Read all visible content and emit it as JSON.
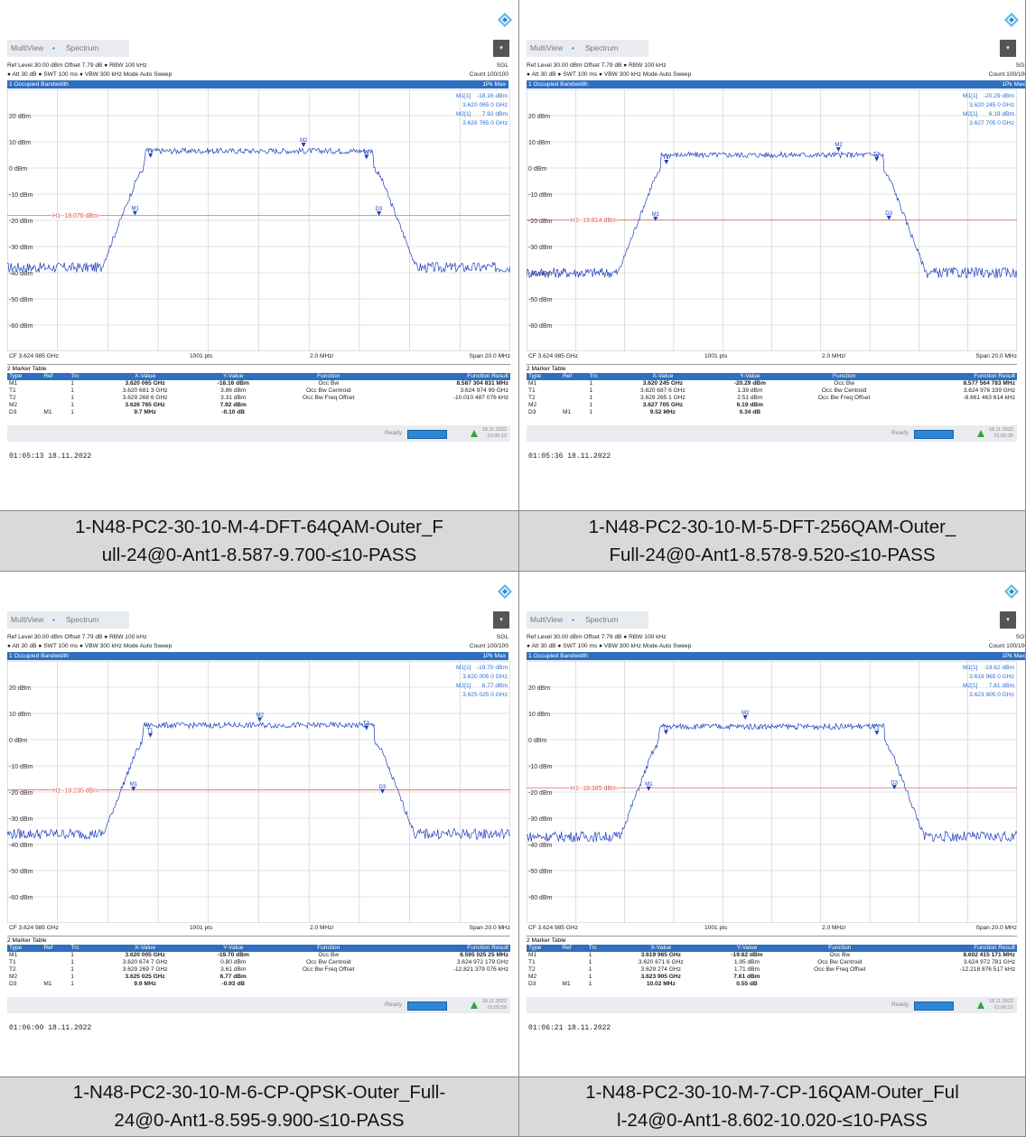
{
  "colors": {
    "accent": "#2f6fbf",
    "trace": "#1e3fbf",
    "display_line": "#e05050",
    "caption_bg": "#d9d9d9"
  },
  "panels": [
    {
      "tab_mv": "MultiView",
      "tab_sp": "Spectrum",
      "setting1": "Ref Level 30.00 dBm   Offset 7.79 dB ● RBW 100 kHz",
      "setting1_r": "SGL",
      "setting2": "● Att 30 dB ● SWT 100 ms ● VBW 300 kHz   Mode Auto Sweep",
      "setting2_r": "Count 100/100",
      "window_title": "1 Occupied Bandwidth",
      "window_trace": "1Pk Max",
      "marker_readout": [
        [
          "M1[1]",
          "-18.16 dBm"
        ],
        [
          "",
          "3.620 065 0 GHz"
        ],
        [
          "M2[1]",
          "7.92 dBm"
        ],
        [
          "",
          "3.626 765 0 GHz"
        ]
      ],
      "h1_label": "H1 -18.076 dBm",
      "y_labels": [
        "20 dBm",
        "10 dBm",
        "0 dBm",
        "-10 dBm",
        "-20 dBm",
        "-30 dBm",
        "-40 dBm",
        "-50 dBm",
        "-60 dBm"
      ],
      "cf": "CF 3.624 985 GHz",
      "pts": "1001 pts",
      "div": "2.0 MHz/",
      "span": "Span 20.0 MHz",
      "table_title": "2 Marker Table",
      "table_headers": [
        "Type",
        "Ref",
        "Trc",
        "X-Value",
        "Y-Value",
        "Function",
        "Function Result"
      ],
      "table_rows": [
        [
          "M1",
          "",
          "1",
          "3.620 065 GHz",
          "-18.16 dBm",
          "Occ Bw",
          "8.587 304 831 MHz"
        ],
        [
          "T1",
          "",
          "1",
          "3.620 681 3 GHz",
          "3.86 dBm",
          "Occ Bw Centroid",
          "3.624 974 99 GHz"
        ],
        [
          "T2",
          "",
          "1",
          "3.629 268 6 GHz",
          "3.31 dBm",
          "Occ Bw Freq Offset",
          "-10.010 487 076 kHz"
        ],
        [
          "M2",
          "",
          "1",
          "3.626 765 GHz",
          "7.92 dBm",
          "",
          ""
        ],
        [
          "D3",
          "M1",
          "1",
          "9.7 MHz",
          "-0.10 dB",
          "",
          ""
        ]
      ],
      "status": "Ready",
      "status_date": "18.11.2022",
      "status_time": "01:05:13",
      "timestamp": "01:05:13  18.11.2022",
      "caption": [
        "1-N48-PC2-30-10-M-4-DFT-64QAM-Outer_F",
        "ull-24@0-Ant1-8.587-9.700-≤10-PASS"
      ],
      "chart_data": {
        "type": "line",
        "x_center_ghz": 3.624985,
        "span_mhz": 20.0,
        "ylim": [
          -70,
          30
        ],
        "h1_dbm": -18.076,
        "markers": [
          {
            "name": "M1",
            "x_ghz": 3.620065,
            "y_dbm": -18.16
          },
          {
            "name": "M2",
            "x_ghz": 3.626765,
            "y_dbm": 7.92
          },
          {
            "name": "T1",
            "x_ghz": 3.6206813,
            "y_dbm": 3.86
          },
          {
            "name": "T2",
            "x_ghz": 3.6292686,
            "y_dbm": 3.31
          },
          {
            "name": "D3",
            "x_ghz": 3.629765,
            "y_dbm": -18.26
          }
        ],
        "levels": {
          "noise": -38,
          "plateau": 6.5,
          "edge_lo": 3.62045,
          "edge_hi": 3.62955
        }
      }
    },
    {
      "tab_mv": "MultiView",
      "tab_sp": "Spectrum",
      "setting1": "Ref Level 30.00 dBm   Offset 7.79 dB ● RBW 100 kHz",
      "setting1_r": "SGL",
      "setting2": "● Att 30 dB ● SWT 100 ms ● VBW 300 kHz   Mode Auto Sweep",
      "setting2_r": "Count 100/100",
      "window_title": "1 Occupied Bandwidth",
      "window_trace": "1Pk Max",
      "marker_readout": [
        [
          "M1[1]",
          "-20.29 dBm"
        ],
        [
          "",
          "3.620 245 0 GHz"
        ],
        [
          "M2[1]",
          "6.19 dBm"
        ],
        [
          "",
          "3.627 705 0 GHz"
        ]
      ],
      "h1_label": "H1 -19.814 dBm",
      "y_labels": [
        "20 dBm",
        "10 dBm",
        "0 dBm",
        "-10 dBm",
        "-20 dBm",
        "-30 dBm",
        "-40 dBm",
        "-50 dBm",
        "-60 dBm"
      ],
      "cf": "CF 3.624 985 GHz",
      "pts": "1001 pts",
      "div": "2.0 MHz/",
      "span": "Span 20.0 MHz",
      "table_title": "2 Marker Table",
      "table_headers": [
        "Type",
        "Ref",
        "Trc",
        "X-Value",
        "Y-Value",
        "Function",
        "Function Result"
      ],
      "table_rows": [
        [
          "M1",
          "",
          "1",
          "3.620 245 GHz",
          "-20.29 dBm",
          "Occ Bw",
          "8.577 564 783 MHz"
        ],
        [
          "T1",
          "",
          "1",
          "3.620 687 6 GHz",
          "1.39 dBm",
          "Occ Bw Centroid",
          "3.624 976 339 GHz"
        ],
        [
          "T2",
          "",
          "1",
          "3.629 265 1 GHz",
          "2.51 dBm",
          "Occ Bw Freq Offset",
          "-8.661 463 614 kHz"
        ],
        [
          "M2",
          "",
          "1",
          "3.627 705 GHz",
          "6.19 dBm",
          "",
          ""
        ],
        [
          "D3",
          "M1",
          "1",
          "9.52 MHz",
          "0.34 dB",
          "",
          ""
        ]
      ],
      "status": "Ready",
      "status_date": "18.11.2022",
      "status_time": "01:05:35",
      "timestamp": "01:05:36  18.11.2022",
      "caption": [
        "1-N48-PC2-30-10-M-5-DFT-256QAM-Outer_",
        "Full-24@0-Ant1-8.578-9.520-≤10-PASS"
      ],
      "chart_data": {
        "type": "line",
        "x_center_ghz": 3.624985,
        "span_mhz": 20.0,
        "ylim": [
          -70,
          30
        ],
        "h1_dbm": -19.814,
        "markers": [
          {
            "name": "M1",
            "x_ghz": 3.620245,
            "y_dbm": -20.29
          },
          {
            "name": "M2",
            "x_ghz": 3.627705,
            "y_dbm": 6.19
          },
          {
            "name": "T1",
            "x_ghz": 3.6206876,
            "y_dbm": 1.39
          },
          {
            "name": "T2",
            "x_ghz": 3.6292651,
            "y_dbm": 2.51
          },
          {
            "name": "D3",
            "x_ghz": 3.629765,
            "y_dbm": -19.95
          }
        ],
        "levels": {
          "noise": -40,
          "plateau": 5,
          "edge_lo": 3.62045,
          "edge_hi": 3.62955
        }
      }
    },
    {
      "tab_mv": "MultiView",
      "tab_sp": "Spectrum",
      "setting1": "Ref Level 30.00 dBm   Offset 7.79 dB ● RBW 100 kHz",
      "setting1_r": "SGL",
      "setting2": "● Att 30 dB ● SWT 100 ms ● VBW 300 kHz   Mode Auto Sweep",
      "setting2_r": "Count 100/100",
      "window_title": "1 Occupied Bandwidth",
      "window_trace": "1Pk Max",
      "marker_readout": [
        [
          "M1[1]",
          "-19.70 dBm"
        ],
        [
          "",
          "3.620 005 0 GHz"
        ],
        [
          "M2[1]",
          "6.77 dBm"
        ],
        [
          "",
          "3.625 025 0 GHz"
        ]
      ],
      "h1_label": "H1 -19.235 dBm",
      "y_labels": [
        "20 dBm",
        "10 dBm",
        "0 dBm",
        "-10 dBm",
        "-20 dBm",
        "-30 dBm",
        "-40 dBm",
        "-50 dBm",
        "-60 dBm"
      ],
      "cf": "CF 3.624 985 GHz",
      "pts": "1001 pts",
      "div": "2.0 MHz/",
      "span": "Span 20.0 MHz",
      "table_title": "2 Marker Table",
      "table_headers": [
        "Type",
        "Ref",
        "Trc",
        "X-Value",
        "Y-Value",
        "Function",
        "Function Result"
      ],
      "table_rows": [
        [
          "M1",
          "",
          "1",
          "3.620 005 GHz",
          "-19.70 dBm",
          "Occ Bw",
          "8.595 025 25 MHz"
        ],
        [
          "T1",
          "",
          "1",
          "3.620 674 7 GHz",
          "0.80 dBm",
          "Occ Bw Centroid",
          "3.624 972 179 GHz"
        ],
        [
          "T2",
          "",
          "1",
          "3.629 269 7 GHz",
          "3.61 dBm",
          "Occ Bw Freq Offset",
          "-12.821 379 076 kHz"
        ],
        [
          "M2",
          "",
          "1",
          "3.625 025 GHz",
          "6.77 dBm",
          "",
          ""
        ],
        [
          "D3",
          "M1",
          "1",
          "9.9 MHz",
          "-0.93 dB",
          "",
          ""
        ]
      ],
      "status": "Ready",
      "status_date": "18.11.2022",
      "status_time": "01:05:59",
      "timestamp": "01:06:00  18.11.2022",
      "caption": [
        "1-N48-PC2-30-10-M-6-CP-QPSK-Outer_Full-",
        "24@0-Ant1-8.595-9.900-≤10-PASS"
      ],
      "chart_data": {
        "type": "line",
        "x_center_ghz": 3.624985,
        "span_mhz": 20.0,
        "ylim": [
          -70,
          30
        ],
        "h1_dbm": -19.235,
        "markers": [
          {
            "name": "M1",
            "x_ghz": 3.620005,
            "y_dbm": -19.7
          },
          {
            "name": "M2",
            "x_ghz": 3.625025,
            "y_dbm": 6.77
          },
          {
            "name": "T1",
            "x_ghz": 3.6206747,
            "y_dbm": 0.8
          },
          {
            "name": "T2",
            "x_ghz": 3.6292697,
            "y_dbm": 3.61
          },
          {
            "name": "D3",
            "x_ghz": 3.629905,
            "y_dbm": -20.63
          }
        ],
        "levels": {
          "noise": -36,
          "plateau": 5.5,
          "edge_lo": 3.6204,
          "edge_hi": 3.6296
        }
      }
    },
    {
      "tab_mv": "MultiView",
      "tab_sp": "Spectrum",
      "setting1": "Ref Level 30.00 dBm   Offset 7.79 dB ● RBW 100 kHz",
      "setting1_r": "SGL",
      "setting2": "● Att 30 dB ● SWT 100 ms ● VBW 300 kHz   Mode Auto Sweep",
      "setting2_r": "Count 100/100",
      "window_title": "1 Occupied Bandwidth",
      "window_trace": "1Pk Max",
      "marker_readout": [
        [
          "M1[1]",
          "-19.62 dBm"
        ],
        [
          "",
          "3.619 965 0 GHz"
        ],
        [
          "M2[1]",
          "7.61 dBm"
        ],
        [
          "",
          "3.623 905 0 GHz"
        ]
      ],
      "h1_label": "H1 -18.385 dBm",
      "y_labels": [
        "20 dBm",
        "10 dBm",
        "0 dBm",
        "-10 dBm",
        "-20 dBm",
        "-30 dBm",
        "-40 dBm",
        "-50 dBm",
        "-60 dBm"
      ],
      "cf": "CF 3.624 985 GHz",
      "pts": "1001 pts",
      "div": "2.0 MHz/",
      "span": "Span 20.0 MHz",
      "table_title": "2 Marker Table",
      "table_headers": [
        "Type",
        "Ref",
        "Trc",
        "X-Value",
        "Y-Value",
        "Function",
        "Function Result"
      ],
      "table_rows": [
        [
          "M1",
          "",
          "1",
          "3.619 965 GHz",
          "-19.62 dBm",
          "Occ Bw",
          "8.602 415 171 MHz"
        ],
        [
          "T1",
          "",
          "1",
          "3.620 671 6 GHz",
          "1.95 dBm",
          "Occ Bw Centroid",
          "3.624 972 781 GHz"
        ],
        [
          "T2",
          "",
          "1",
          "3.629 274 GHz",
          "1.71 dBm",
          "Occ Bw Freq Offset",
          "-12.218 876 517 kHz"
        ],
        [
          "M2",
          "",
          "1",
          "3.623 905 GHz",
          "7.61 dBm",
          "",
          ""
        ],
        [
          "D3",
          "M1",
          "1",
          "10.02 MHz",
          "0.55 dB",
          "",
          ""
        ]
      ],
      "status": "Ready",
      "status_date": "18.11.2022",
      "status_time": "01:06:21",
      "timestamp": "01:06:21  18.11.2022",
      "caption": [
        "1-N48-PC2-30-10-M-7-CP-16QAM-Outer_Ful",
        "l-24@0-Ant1-8.602-10.020-≤10-PASS"
      ],
      "chart_data": {
        "type": "line",
        "x_center_ghz": 3.624985,
        "span_mhz": 20.0,
        "ylim": [
          -70,
          30
        ],
        "h1_dbm": -18.385,
        "markers": [
          {
            "name": "M1",
            "x_ghz": 3.619965,
            "y_dbm": -19.62
          },
          {
            "name": "M2",
            "x_ghz": 3.623905,
            "y_dbm": 7.61
          },
          {
            "name": "T1",
            "x_ghz": 3.6206716,
            "y_dbm": 1.95
          },
          {
            "name": "T2",
            "x_ghz": 3.629274,
            "y_dbm": 1.71
          },
          {
            "name": "D3",
            "x_ghz": 3.629985,
            "y_dbm": -19.07
          }
        ],
        "levels": {
          "noise": -37,
          "plateau": 5,
          "edge_lo": 3.6204,
          "edge_hi": 3.6296
        }
      }
    }
  ]
}
